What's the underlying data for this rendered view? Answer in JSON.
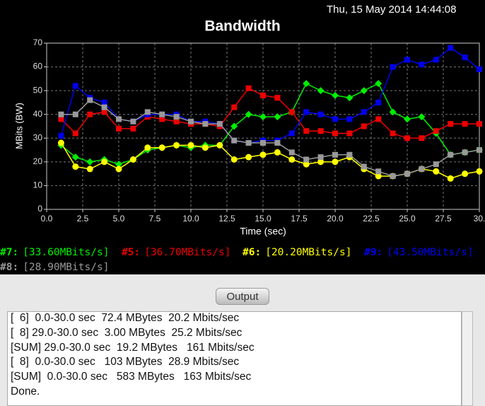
{
  "header": {
    "datetime": "Thu, 15 May 2014 14:44:08"
  },
  "chart_data": {
    "type": "line",
    "title": "Bandwidth",
    "x_label": "Time (sec)",
    "y_label": "MBits (BW)",
    "x": [
      1,
      2,
      3,
      4,
      5,
      6,
      7,
      8,
      9,
      10,
      11,
      12,
      13,
      14,
      15,
      16,
      17,
      18,
      19,
      20,
      21,
      22,
      23,
      24,
      25,
      26,
      27,
      28,
      29,
      30
    ],
    "xlim": [
      0,
      30
    ],
    "ylim": [
      0,
      70
    ],
    "xticks": [
      {
        "value": 0,
        "label": "0.0"
      },
      {
        "value": 2.5,
        "label": "2.5"
      },
      {
        "value": 5,
        "label": "5.0"
      },
      {
        "value": 7.5,
        "label": "7.5"
      },
      {
        "value": 10,
        "label": "10.0"
      },
      {
        "value": 12.5,
        "label": "12.5"
      },
      {
        "value": 15,
        "label": "15.0"
      },
      {
        "value": 17.5,
        "label": "17.5"
      },
      {
        "value": 20,
        "label": "20.0"
      },
      {
        "value": 22.5,
        "label": "22.5"
      },
      {
        "value": 25,
        "label": "25.0"
      },
      {
        "value": 27.5,
        "label": "27.5"
      },
      {
        "value": 30,
        "label": "30."
      }
    ],
    "yticks": [
      0,
      10,
      20,
      30,
      40,
      50,
      60,
      70
    ],
    "grid": true,
    "series": [
      {
        "name": "#7:",
        "rate": "[33.60MBits/s]",
        "color": "#00ee00",
        "marker": "diamond",
        "values": [
          27,
          22,
          20,
          21,
          19,
          21,
          25,
          26,
          27,
          26,
          27,
          27,
          35,
          40,
          39,
          39,
          41,
          53,
          50,
          48,
          47,
          50,
          53,
          41,
          38,
          39,
          32,
          23,
          24,
          25
        ]
      },
      {
        "name": "#5:",
        "rate": "[36.70MBits/s]",
        "color": "#ee0000",
        "marker": "square",
        "values": [
          38,
          32,
          40,
          41,
          34,
          34,
          39,
          38,
          37,
          36,
          36,
          35,
          43,
          51,
          48,
          47,
          41,
          33,
          33,
          32,
          32,
          35,
          38,
          32,
          30,
          30,
          33,
          36,
          36,
          36
        ]
      },
      {
        "name": "#6:",
        "rate": "[20.20MBits/s]",
        "color": "#ffff00",
        "marker": "circle",
        "values": [
          28,
          18,
          17,
          20,
          17,
          21,
          26,
          26,
          27,
          27,
          26,
          27,
          21,
          22,
          23,
          24,
          21,
          19,
          20,
          20,
          22,
          17,
          14,
          14,
          15,
          17,
          16,
          13,
          15,
          16
        ]
      },
      {
        "name": "#9:",
        "rate": "[43.50MBits/s]",
        "color": "#0000ee",
        "marker": "square",
        "values": [
          31,
          52,
          47,
          45,
          38,
          37,
          40,
          40,
          40,
          37,
          37,
          36,
          29,
          28,
          29,
          29,
          32,
          41,
          40,
          38,
          38,
          41,
          45,
          60,
          63,
          61,
          63,
          68,
          64,
          59
        ]
      },
      {
        "name": "#8:",
        "rate": "[28.90MBits/s]",
        "color": "#999999",
        "marker": "square",
        "values": [
          40,
          40,
          46,
          43,
          38,
          37,
          41,
          40,
          39,
          37,
          36,
          36,
          29,
          28,
          28,
          28,
          24,
          21,
          22,
          23,
          23,
          18,
          16,
          14,
          15,
          17,
          19,
          23,
          24,
          25
        ]
      }
    ]
  },
  "output": {
    "title": "Output",
    "lines": [
      "[  6]  0.0-30.0 sec  72.4 MBytes  20.2 Mbits/sec",
      "[  8] 29.0-30.0 sec  3.00 MBytes  25.2 Mbits/sec",
      "[SUM] 29.0-30.0 sec  19.2 MBytes   161 Mbits/sec",
      "[  8]  0.0-30.0 sec   103 MBytes  28.9 Mbits/sec",
      "[SUM]  0.0-30.0 sec   583 MBytes   163 Mbits/sec",
      "Done."
    ]
  }
}
